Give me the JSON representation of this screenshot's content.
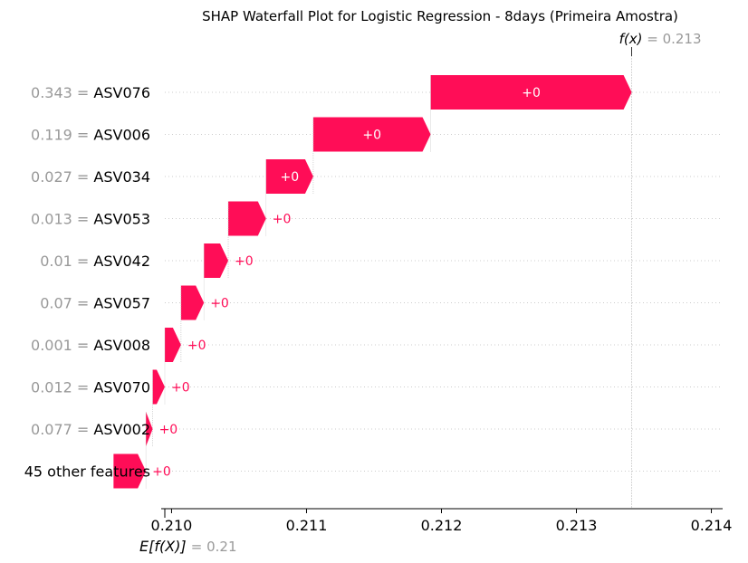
{
  "chart_data": {
    "type": "waterfall",
    "title": "SHAP Waterfall Plot for Logistic Regression - 8days (Primeira Amostra)",
    "fx": {
      "label": "f(x)",
      "value_text": "= 0.213",
      "value": 0.21341
    },
    "ex": {
      "label": "E[f(X)]",
      "value_text": "= 0.21",
      "value": 0.20995
    },
    "xlim": [
      0.20995,
      0.21403
    ],
    "x_ticks": [
      {
        "value": 0.21,
        "label": "0.210"
      },
      {
        "value": 0.211,
        "label": "0.211"
      },
      {
        "value": 0.212,
        "label": "0.212"
      },
      {
        "value": 0.213,
        "label": "0.213"
      },
      {
        "value": 0.214,
        "label": "0.214"
      }
    ],
    "features": [
      {
        "value_text": "0.343 =",
        "name": "ASV076",
        "contribution_label": "+0",
        "start": 0.21192,
        "end": 0.21341
      },
      {
        "value_text": "0.119 =",
        "name": "ASV006",
        "contribution_label": "+0",
        "start": 0.21105,
        "end": 0.21192
      },
      {
        "value_text": "0.027 =",
        "name": "ASV034",
        "contribution_label": "+0",
        "start": 0.2107,
        "end": 0.21105
      },
      {
        "value_text": "0.013 =",
        "name": "ASV053",
        "contribution_label": "+0",
        "start": 0.21042,
        "end": 0.2107
      },
      {
        "value_text": "0.01 =",
        "name": "ASV042",
        "contribution_label": "+0",
        "start": 0.21024,
        "end": 0.21042
      },
      {
        "value_text": "0.07 =",
        "name": "ASV057",
        "contribution_label": "+0",
        "start": 0.21007,
        "end": 0.21024
      },
      {
        "value_text": "0.001 =",
        "name": "ASV008",
        "contribution_label": "+0",
        "start": 0.20995,
        "end": 0.21007
      },
      {
        "value_text": "0.012 =",
        "name": "ASV070",
        "contribution_label": "+0",
        "start": 0.20986,
        "end": 0.20995
      },
      {
        "value_text": "0.077 =",
        "name": "ASV002",
        "contribution_label": "+0",
        "start": 0.20981,
        "end": 0.20986
      },
      {
        "value_text": "",
        "name": "45 other features",
        "contribution_label": "+0",
        "start": 0.20957,
        "end": 0.20981
      }
    ],
    "colors": {
      "positive": "#ff0d57",
      "muted": "#999999"
    }
  }
}
